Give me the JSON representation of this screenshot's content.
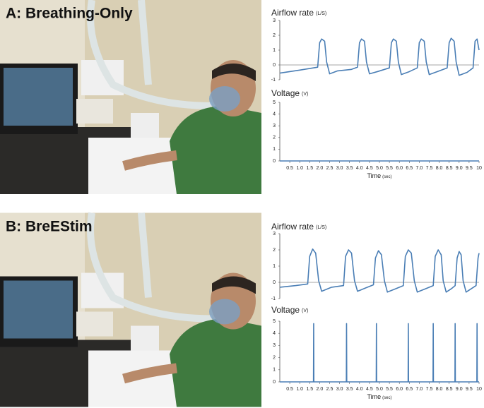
{
  "panels": [
    {
      "label": "A: Breathing-Only"
    },
    {
      "label": "B: BreEStim"
    }
  ],
  "chart_data": [
    {
      "type": "line",
      "ylabel": "Airflow rate",
      "ylabel_unit": "(L/S)",
      "xlim": [
        0,
        10
      ],
      "ylim": [
        -1,
        3
      ],
      "yticks": [
        -1,
        0,
        1,
        2,
        3
      ],
      "series": [
        {
          "color": "#4a7eb5",
          "x": [
            0,
            1,
            1.9,
            2,
            2.1,
            2.25,
            2.35,
            2.5,
            2.9,
            3.6,
            3.9,
            4,
            4.1,
            4.25,
            4.35,
            4.5,
            4.9,
            5.5,
            5.6,
            5.7,
            5.85,
            5.95,
            6.1,
            6.5,
            6.9,
            7,
            7.1,
            7.25,
            7.35,
            7.5,
            7.9,
            8.4,
            8.5,
            8.6,
            8.75,
            8.85,
            9,
            9.4,
            9.7,
            9.8,
            9.9,
            10
          ],
          "values": [
            -0.55,
            -0.35,
            -0.15,
            1.5,
            1.75,
            1.6,
            0.2,
            -0.6,
            -0.4,
            -0.3,
            -0.15,
            1.5,
            1.75,
            1.6,
            0.2,
            -0.6,
            -0.45,
            -0.2,
            1.5,
            1.75,
            1.6,
            0.2,
            -0.65,
            -0.45,
            -0.2,
            1.5,
            1.75,
            1.6,
            0.2,
            -0.65,
            -0.45,
            -0.2,
            1.5,
            1.8,
            1.6,
            0.2,
            -0.7,
            -0.5,
            -0.2,
            1.6,
            1.75,
            1.0
          ]
        }
      ]
    },
    {
      "type": "line",
      "ylabel": "Voltage",
      "ylabel_unit": "(V)",
      "xlabel": "Time",
      "xlabel_unit": "(sec)",
      "xlim": [
        0,
        10
      ],
      "ylim": [
        0,
        5
      ],
      "yticks": [
        0,
        1,
        2,
        3,
        4,
        5
      ],
      "xticks": [
        0.5,
        {
          "value": 1,
          "label": "1.0"
        },
        1.5,
        {
          "value": 2,
          "label": "2.0"
        },
        2.5,
        {
          "value": 3,
          "label": "3.0"
        },
        3.5,
        {
          "value": 4,
          "label": "4.0"
        },
        4.5,
        {
          "value": 5,
          "label": "5.0"
        },
        5.5,
        {
          "value": 6,
          "label": "6.0"
        },
        6.5,
        {
          "value": 7,
          "label": "7.0"
        },
        7.5,
        {
          "value": 8,
          "label": "8.0"
        },
        8.5,
        {
          "value": 9,
          "label": "9.0"
        },
        9.5,
        10
      ],
      "series": [
        {
          "color": "#4a7eb5",
          "x": [
            0,
            10
          ],
          "values": [
            0,
            0
          ]
        }
      ]
    },
    {
      "type": "line",
      "ylabel": "Airflow rate",
      "ylabel_unit": "(L/S)",
      "xlim": [
        0,
        10
      ],
      "ylim": [
        -1,
        3
      ],
      "yticks": [
        -1,
        0,
        1,
        2,
        3
      ],
      "series": [
        {
          "color": "#4a7eb5",
          "x": [
            0,
            0.8,
            1.4,
            1.5,
            1.65,
            1.8,
            1.95,
            2.1,
            2.6,
            3.2,
            3.3,
            3.45,
            3.6,
            3.75,
            3.9,
            4.3,
            4.7,
            4.8,
            4.95,
            5.1,
            5.25,
            5.4,
            5.8,
            6.2,
            6.3,
            6.45,
            6.6,
            6.75,
            6.9,
            7.3,
            7.7,
            7.8,
            7.95,
            8.1,
            8.2,
            8.35,
            8.6,
            8.8,
            8.9,
            9,
            9.1,
            9.2,
            9.35,
            9.6,
            9.85,
            9.95,
            10
          ],
          "values": [
            -0.3,
            -0.2,
            -0.1,
            1.6,
            2.05,
            1.8,
            0.1,
            -0.55,
            -0.3,
            -0.2,
            1.6,
            2.0,
            1.8,
            0.1,
            -0.55,
            -0.35,
            -0.15,
            1.5,
            1.95,
            1.7,
            0.1,
            -0.6,
            -0.4,
            -0.2,
            1.6,
            2.0,
            1.8,
            0.1,
            -0.6,
            -0.4,
            -0.2,
            1.6,
            2.0,
            1.7,
            0.1,
            -0.6,
            -0.4,
            -0.2,
            1.5,
            1.9,
            1.7,
            0.1,
            -0.6,
            -0.4,
            -0.2,
            1.5,
            1.8
          ]
        }
      ]
    },
    {
      "type": "line",
      "ylabel": "Voltage",
      "ylabel_unit": "(V)",
      "xlabel": "Time",
      "xlabel_unit": "(sec)",
      "xlim": [
        0,
        10
      ],
      "ylim": [
        0,
        5
      ],
      "yticks": [
        0,
        1,
        2,
        3,
        4,
        5
      ],
      "xticks": [
        0.5,
        {
          "value": 1,
          "label": "1.0"
        },
        1.5,
        {
          "value": 2,
          "label": "2.0"
        },
        2.5,
        {
          "value": 3,
          "label": "3.0"
        },
        3.5,
        {
          "value": 4,
          "label": "4.0"
        },
        4.5,
        {
          "value": 5,
          "label": "5.0"
        },
        5.5,
        {
          "value": 6,
          "label": "6.0"
        },
        6.5,
        {
          "value": 7,
          "label": "7.0"
        },
        7.5,
        {
          "value": 8,
          "label": "8.0"
        },
        8.5,
        {
          "value": 9,
          "label": "9.0"
        },
        9.5,
        10
      ],
      "series": [
        {
          "color": "#4a7eb5",
          "x": [
            0,
            1.69,
            1.7,
            1.71,
            3.34,
            3.35,
            3.36,
            4.84,
            4.85,
            4.86,
            6.44,
            6.45,
            6.46,
            7.69,
            7.7,
            7.71,
            8.79,
            8.8,
            8.81,
            9.89,
            9.9,
            9.91,
            10
          ],
          "values": [
            0,
            0,
            4.8,
            0,
            0,
            4.8,
            0,
            0,
            4.8,
            0,
            0,
            4.8,
            0,
            0,
            4.8,
            0,
            0,
            4.8,
            0,
            0,
            4.8,
            0,
            0
          ]
        }
      ]
    }
  ]
}
